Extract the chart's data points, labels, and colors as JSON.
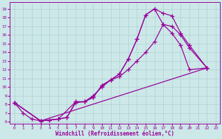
{
  "xlabel": "Windchill (Refroidissement éolien,°C)",
  "bg_color": "#cce8e8",
  "line_color": "#990099",
  "xlim": [
    -0.5,
    23.5
  ],
  "ylim": [
    5.8,
    19.8
  ],
  "xticks": [
    0,
    1,
    2,
    3,
    4,
    5,
    6,
    7,
    8,
    9,
    10,
    11,
    12,
    13,
    14,
    15,
    16,
    17,
    18,
    19,
    20,
    21,
    22,
    23
  ],
  "yticks": [
    6,
    7,
    8,
    9,
    10,
    11,
    12,
    13,
    14,
    15,
    16,
    17,
    18,
    19
  ],
  "line1_x": [
    0,
    1,
    2,
    3,
    4,
    5,
    6,
    7,
    8,
    9,
    10,
    11,
    12,
    13,
    14,
    15,
    16,
    17,
    18,
    19,
    20,
    22
  ],
  "line1_y": [
    8.2,
    7.0,
    6.3,
    6.1,
    6.2,
    6.3,
    6.5,
    8.3,
    8.3,
    8.8,
    10.2,
    10.8,
    11.5,
    13.2,
    15.5,
    18.3,
    19.0,
    18.5,
    18.2,
    16.2,
    14.8,
    12.2
  ],
  "line2_x": [
    0,
    3,
    5,
    7,
    8,
    9,
    10,
    11,
    12,
    13,
    14,
    15,
    16,
    17,
    18,
    19,
    20,
    22
  ],
  "line2_y": [
    8.2,
    6.1,
    6.3,
    8.3,
    8.3,
    8.8,
    10.2,
    10.8,
    11.5,
    13.2,
    15.5,
    18.3,
    19.0,
    17.2,
    16.2,
    14.8,
    12.0,
    12.2
  ],
  "line3_x": [
    0,
    3,
    4,
    5,
    6,
    7,
    8,
    9,
    10,
    11,
    12,
    13,
    14,
    15,
    16,
    17,
    18,
    19,
    20,
    22
  ],
  "line3_y": [
    8.2,
    6.1,
    6.2,
    6.3,
    6.5,
    8.2,
    8.3,
    9.0,
    10.0,
    10.8,
    11.2,
    12.0,
    13.0,
    14.0,
    15.2,
    17.2,
    17.0,
    16.0,
    14.5,
    12.2
  ],
  "line4_x": [
    0,
    3,
    22
  ],
  "line4_y": [
    8.2,
    6.1,
    12.2
  ]
}
